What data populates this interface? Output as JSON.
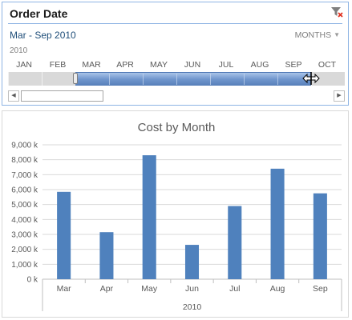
{
  "timeline": {
    "title": "Order Date",
    "range_label": "Mar - Sep 2010",
    "time_level": "MONTHS",
    "year_label": "2010",
    "months": [
      "JAN",
      "FEB",
      "MAR",
      "APR",
      "MAY",
      "JUN",
      "JUL",
      "AUG",
      "SEP",
      "OCT"
    ],
    "selected_from_index": 2,
    "selected_to_index": 8,
    "clear_filter_icon": "clear-filter-icon",
    "colors": {
      "selection": "#6f95cc",
      "title_divider": "#8eb4e3",
      "range_text": "#1f4e79"
    }
  },
  "chart_data": {
    "type": "bar",
    "title": "Cost by Month",
    "categories": [
      "Mar",
      "Apr",
      "May",
      "Jun",
      "Jul",
      "Aug",
      "Sep"
    ],
    "values": [
      5850000,
      3150000,
      8300000,
      2300000,
      4900000,
      7400000,
      5750000
    ],
    "group_label": "2010",
    "yticks": [
      "0 k",
      "1,000 k",
      "2,000 k",
      "3,000 k",
      "4,000 k",
      "5,000 k",
      "6,000 k",
      "7,000 k",
      "8,000 k",
      "9,000 k"
    ],
    "ylim": [
      0,
      9000000
    ],
    "grid": true,
    "legend": "none",
    "bar_color": "#4f81bd"
  }
}
